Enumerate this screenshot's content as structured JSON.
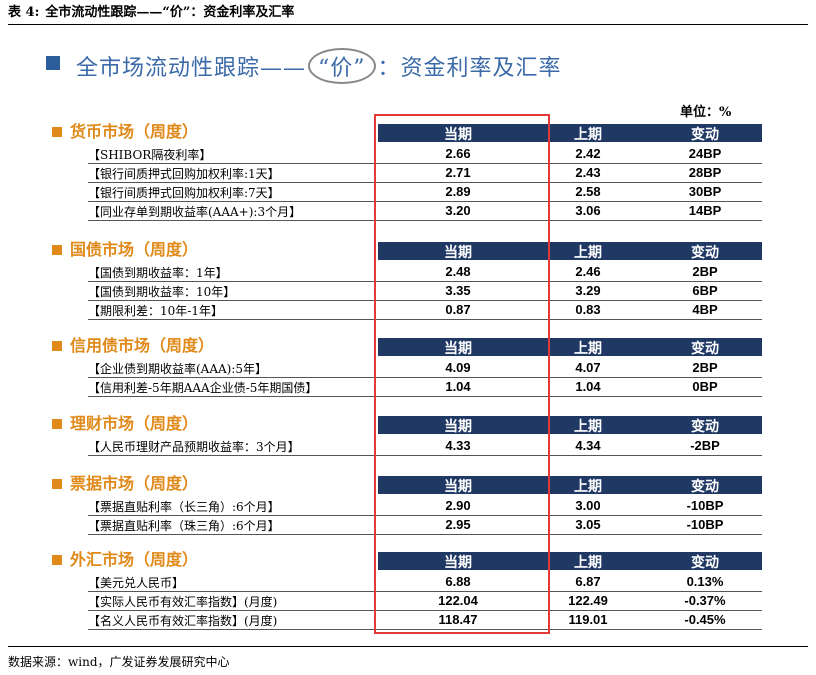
{
  "caption": {
    "label": "表 4:",
    "text": "全市流动性跟踪——“价”：资金利率及汇率"
  },
  "title": {
    "prefix": "全市场流动性跟踪——",
    "circled": "“价”",
    "suffix": "：资金利率及汇率"
  },
  "unit": "单位：%",
  "column_headers": {
    "current": "当期",
    "previous": "上期",
    "change": "变动"
  },
  "sections": [
    {
      "title": "货币市场（周度）",
      "rows": [
        {
          "label": "【SHIBOR隔夜利率】",
          "current": "2.66",
          "previous": "2.42",
          "change": "24BP"
        },
        {
          "label": "【银行间质押式回购加权利率:1天】",
          "current": "2.71",
          "previous": "2.43",
          "change": "28BP"
        },
        {
          "label": "【银行间质押式回购加权利率:7天】",
          "current": "2.89",
          "previous": "2.58",
          "change": "30BP"
        },
        {
          "label": "【同业存单到期收益率(AAA+):3个月】",
          "current": "3.20",
          "previous": "3.06",
          "change": "14BP"
        }
      ]
    },
    {
      "title": "国债市场（周度）",
      "rows": [
        {
          "label": "【国债到期收益率：1年】",
          "current": "2.48",
          "previous": "2.46",
          "change": "2BP"
        },
        {
          "label": "【国债到期收益率：10年】",
          "current": "3.35",
          "previous": "3.29",
          "change": "6BP"
        },
        {
          "label": "【期限利差：10年-1年】",
          "current": "0.87",
          "previous": "0.83",
          "change": "4BP"
        }
      ]
    },
    {
      "title": "信用债市场（周度）",
      "rows": [
        {
          "label": "【企业债到期收益率(AAA):5年】",
          "current": "4.09",
          "previous": "4.07",
          "change": "2BP"
        },
        {
          "label": "【信用利差-5年期AAA企业债-5年期国债】",
          "current": "1.04",
          "previous": "1.04",
          "change": "0BP"
        }
      ]
    },
    {
      "title": "理财市场（周度）",
      "rows": [
        {
          "label": "【人民币理财产品预期收益率：3个月】",
          "current": "4.33",
          "previous": "4.34",
          "change": "-2BP"
        }
      ]
    },
    {
      "title": "票据市场（周度）",
      "rows": [
        {
          "label": "【票据直贴利率（长三角）:6个月】",
          "current": "2.90",
          "previous": "3.00",
          "change": "-10BP"
        },
        {
          "label": "【票据直贴利率（珠三角）:6个月】",
          "current": "2.95",
          "previous": "3.05",
          "change": "-10BP"
        }
      ]
    },
    {
      "title": "外汇市场（周度）",
      "rows": [
        {
          "label": "【美元兑人民币】",
          "current": "6.88",
          "previous": "6.87",
          "change": "0.13%"
        },
        {
          "label": "【实际人民币有效汇率指数】(月度)",
          "current": "122.04",
          "previous": "122.49",
          "change": "-0.37%"
        },
        {
          "label": "【名义人民币有效汇率指数】(月度)",
          "current": "118.47",
          "previous": "119.01",
          "change": "-0.45%"
        }
      ]
    }
  ],
  "source": "数据来源：wind，广发证券发展研究中心",
  "colors": {
    "header_bg": "#1f3864",
    "section_title": "#e08a1a",
    "highlight_box": "#e03a3a",
    "title_blue": "#3a6aa8"
  }
}
